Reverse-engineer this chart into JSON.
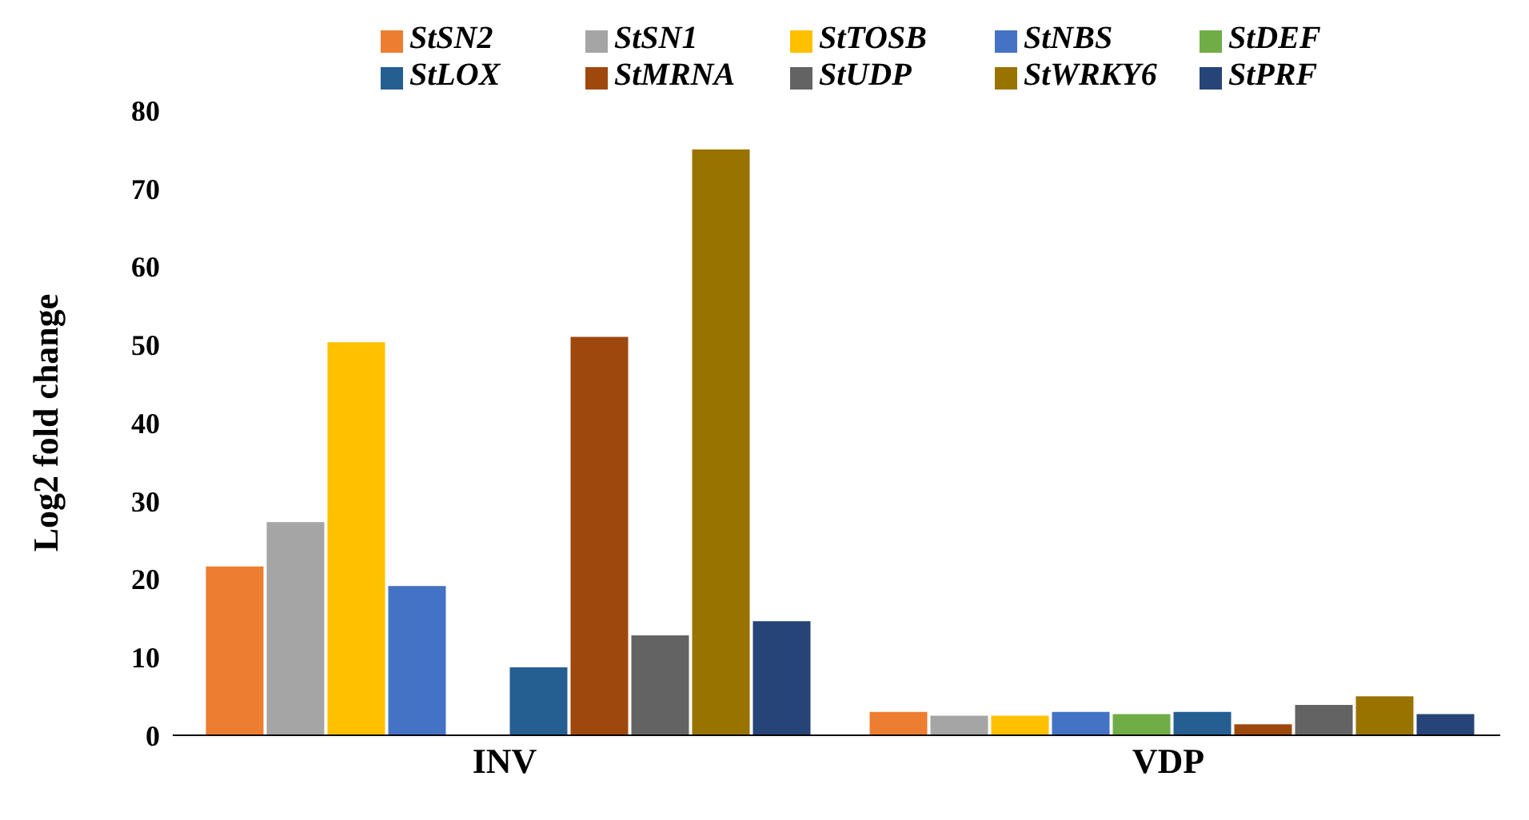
{
  "chart_data": {
    "type": "bar",
    "ylabel": "Log2 fold change",
    "categories": [
      "INV",
      "VDP"
    ],
    "ylim": [
      0,
      80
    ],
    "yticks": [
      0,
      10,
      20,
      30,
      40,
      50,
      60,
      70,
      80
    ],
    "grid": false,
    "legend": "top",
    "series": [
      {
        "name": "StSN2",
        "color": "#ed7d31",
        "values": [
          21.6,
          3.0
        ]
      },
      {
        "name": "StSN1",
        "color": "#a5a5a5",
        "values": [
          27.3,
          2.5
        ]
      },
      {
        "name": "StTOSB",
        "color": "#ffc000",
        "values": [
          50.3,
          2.5
        ]
      },
      {
        "name": "StNBS",
        "color": "#4472c4",
        "values": [
          19.1,
          3.0
        ]
      },
      {
        "name": "StDEF",
        "color": "#70ad47",
        "values": [
          0,
          2.7
        ]
      },
      {
        "name": "StLOX",
        "color": "#255e91",
        "values": [
          8.7,
          3.0
        ]
      },
      {
        "name": "StMRNA",
        "color": "#9e480e",
        "values": [
          51,
          1.4
        ]
      },
      {
        "name": "StUDP",
        "color": "#636363",
        "values": [
          12.8,
          3.9
        ]
      },
      {
        "name": "StWRKY6",
        "color": "#997300",
        "values": [
          75,
          5
        ]
      },
      {
        "name": "StPRF",
        "color": "#264478",
        "values": [
          14.6,
          2.7
        ]
      }
    ]
  }
}
